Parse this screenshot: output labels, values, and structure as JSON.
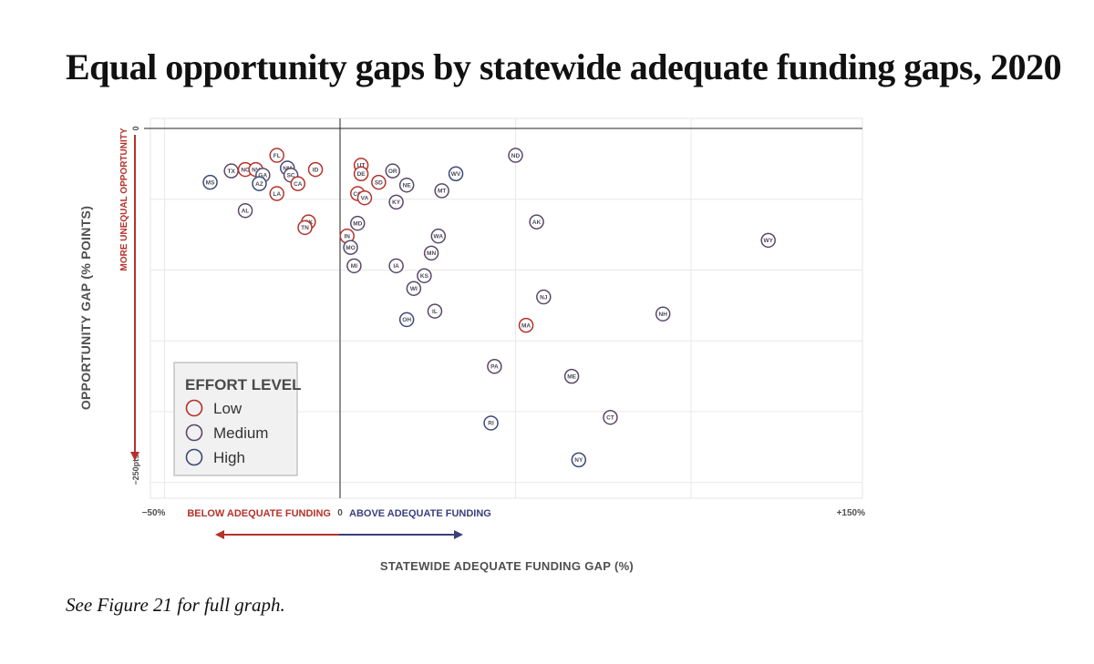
{
  "title": "Equal opportunity gaps by statewide adequate funding gaps, 2020",
  "caption": "See Figure 21 for full graph.",
  "chart_data": {
    "type": "scatter",
    "xlabel": "STATEWIDE ADEQUATE FUNDING GAP (%)",
    "ylabel": "OPPORTUNITY GAP (% POINTS)",
    "x_ticks": [
      {
        "value": -50,
        "label": "−50%"
      },
      {
        "value": 0,
        "label": "0"
      },
      {
        "value": 150,
        "label": "+150%"
      }
    ],
    "y_ticks": [
      {
        "value": 0,
        "label": "0"
      },
      {
        "value": -250,
        "label": "−250pts"
      }
    ],
    "xlim": [
      -55,
      150
    ],
    "ylim": [
      -262,
      8
    ],
    "grid": true,
    "annotations": {
      "y_arrow": "MORE UNEQUAL OPPORTUNITY",
      "x_below": "BELOW ADEQUATE FUNDING",
      "x_above": "ABOVE ADEQUATE FUNDING"
    },
    "legend": {
      "title": "EFFORT LEVEL",
      "position": "bottom-left",
      "items": [
        {
          "key": "low",
          "label": "Low"
        },
        {
          "key": "medium",
          "label": "Medium"
        },
        {
          "key": "high",
          "label": "High"
        }
      ]
    },
    "colors": {
      "low": "#b5322b",
      "medium": "#5a4868",
      "high": "#3a4a78",
      "below_arrow": "#b5322b",
      "above_arrow": "#3a3f7e"
    },
    "points": [
      {
        "state": "FL",
        "x": -18,
        "y": -19,
        "effort": "low"
      },
      {
        "state": "TX",
        "x": -31,
        "y": -30,
        "effort": "medium"
      },
      {
        "state": "NC",
        "x": -27,
        "y": -29,
        "effort": "low"
      },
      {
        "state": "NV",
        "x": -24,
        "y": -29,
        "effort": "low"
      },
      {
        "state": "GA",
        "x": -22,
        "y": -33,
        "effort": "medium"
      },
      {
        "state": "NM",
        "x": -15,
        "y": -28,
        "effort": "high"
      },
      {
        "state": "SC",
        "x": -14,
        "y": -33,
        "effort": "medium"
      },
      {
        "state": "AZ",
        "x": -23,
        "y": -39,
        "effort": "high"
      },
      {
        "state": "CA",
        "x": -12,
        "y": -39,
        "effort": "low"
      },
      {
        "state": "ID",
        "x": -7,
        "y": -29,
        "effort": "low"
      },
      {
        "state": "LA",
        "x": -18,
        "y": -46,
        "effort": "low"
      },
      {
        "state": "MS",
        "x": -37,
        "y": -38,
        "effort": "high"
      },
      {
        "state": "AL",
        "x": -27,
        "y": -58,
        "effort": "medium"
      },
      {
        "state": "OK",
        "x": -9,
        "y": -66,
        "effort": "low"
      },
      {
        "state": "TN",
        "x": -10,
        "y": -70,
        "effort": "low"
      },
      {
        "state": "UT",
        "x": 6,
        "y": -26,
        "effort": "low"
      },
      {
        "state": "DE",
        "x": 6,
        "y": -32,
        "effort": "low"
      },
      {
        "state": "SD",
        "x": 11,
        "y": -38,
        "effort": "low"
      },
      {
        "state": "CO",
        "x": 5,
        "y": -46,
        "effort": "low"
      },
      {
        "state": "VA",
        "x": 7,
        "y": -49,
        "effort": "low"
      },
      {
        "state": "OR",
        "x": 15,
        "y": -30,
        "effort": "medium"
      },
      {
        "state": "NE",
        "x": 19,
        "y": -40,
        "effort": "medium"
      },
      {
        "state": "KY",
        "x": 16,
        "y": -52,
        "effort": "medium"
      },
      {
        "state": "MT",
        "x": 29,
        "y": -44,
        "effort": "medium"
      },
      {
        "state": "WV",
        "x": 33,
        "y": -32,
        "effort": "high"
      },
      {
        "state": "ND",
        "x": 50,
        "y": -19,
        "effort": "medium"
      },
      {
        "state": "MD",
        "x": 5,
        "y": -67,
        "effort": "medium"
      },
      {
        "state": "IN",
        "x": 2,
        "y": -76,
        "effort": "low"
      },
      {
        "state": "MO",
        "x": 3,
        "y": -84,
        "effort": "medium"
      },
      {
        "state": "MI",
        "x": 4,
        "y": -97,
        "effort": "medium"
      },
      {
        "state": "WA",
        "x": 28,
        "y": -76,
        "effort": "medium"
      },
      {
        "state": "MN",
        "x": 26,
        "y": -88,
        "effort": "medium"
      },
      {
        "state": "IA",
        "x": 16,
        "y": -97,
        "effort": "medium"
      },
      {
        "state": "KS",
        "x": 24,
        "y": -104,
        "effort": "medium"
      },
      {
        "state": "WI",
        "x": 21,
        "y": -113,
        "effort": "medium"
      },
      {
        "state": "AK",
        "x": 56,
        "y": -66,
        "effort": "medium"
      },
      {
        "state": "WY",
        "x": 122,
        "y": -79,
        "effort": "medium"
      },
      {
        "state": "NJ",
        "x": 58,
        "y": -119,
        "effort": "medium"
      },
      {
        "state": "IL",
        "x": 27,
        "y": -129,
        "effort": "medium"
      },
      {
        "state": "OH",
        "x": 19,
        "y": -135,
        "effort": "high"
      },
      {
        "state": "MA",
        "x": 53,
        "y": -139,
        "effort": "low"
      },
      {
        "state": "NH",
        "x": 92,
        "y": -131,
        "effort": "medium"
      },
      {
        "state": "PA",
        "x": 44,
        "y": -168,
        "effort": "medium"
      },
      {
        "state": "ME",
        "x": 66,
        "y": -175,
        "effort": "medium"
      },
      {
        "state": "CT",
        "x": 77,
        "y": -204,
        "effort": "medium"
      },
      {
        "state": "RI",
        "x": 43,
        "y": -208,
        "effort": "high"
      },
      {
        "state": "NY",
        "x": 68,
        "y": -234,
        "effort": "high"
      }
    ]
  }
}
